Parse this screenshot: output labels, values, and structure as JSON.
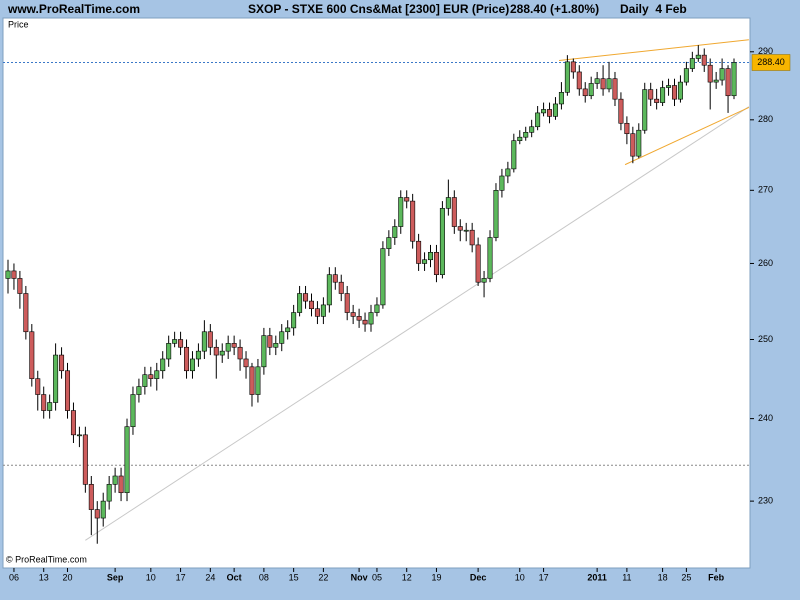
{
  "chart_data": {
    "type": "candlestick",
    "source": "www.ProRealTime.com",
    "title": "SXOP - STXE 600 Cns&Mat [2300] EUR (Price)",
    "subtitle": "288.40 (+1.80%)",
    "period": "Daily  4 Feb",
    "ylabel": "Price",
    "copyright": "© ProRealTime.com",
    "log_scale": true,
    "grid": false,
    "up_color": "#5cb85c",
    "down_color": "#cd5c5c",
    "ylim": [
      222.2,
      295.1
    ],
    "yticks": [
      230,
      240,
      250,
      260,
      270,
      280,
      290
    ],
    "categories": [
      null,
      "06",
      null,
      null,
      null,
      null,
      "13",
      null,
      null,
      null,
      "20",
      null,
      null,
      null,
      null,
      null,
      null,
      null,
      "Sep",
      null,
      null,
      null,
      null,
      null,
      "10",
      null,
      null,
      null,
      null,
      "17",
      null,
      null,
      null,
      null,
      "24",
      null,
      null,
      null,
      "Oct",
      null,
      null,
      null,
      null,
      "08",
      null,
      null,
      null,
      null,
      "15",
      null,
      null,
      null,
      null,
      "22",
      null,
      null,
      null,
      null,
      null,
      "Nov",
      null,
      null,
      "05",
      null,
      null,
      null,
      null,
      "12",
      null,
      null,
      null,
      null,
      "19",
      null,
      null,
      null,
      null,
      null,
      null,
      "Dec",
      null,
      null,
      null,
      null,
      null,
      null,
      "10",
      null,
      null,
      null,
      "17",
      null,
      null,
      null,
      null,
      null,
      null,
      null,
      null,
      "2011",
      null,
      null,
      null,
      null,
      "11",
      null,
      null,
      null,
      null,
      null,
      "18",
      null,
      null,
      null,
      "25",
      null,
      null,
      null,
      null,
      "Feb",
      null,
      null,
      null
    ],
    "open": [
      258,
      259,
      258,
      256,
      251,
      245,
      243,
      241,
      242,
      248,
      246,
      241,
      238,
      238,
      232,
      229,
      228,
      230,
      232,
      233,
      231,
      239,
      243,
      244,
      245.5,
      245,
      246,
      247.5,
      249.5,
      250,
      249,
      246,
      247.5,
      248.5,
      251,
      249,
      248,
      248.5,
      249.5,
      249,
      247.5,
      246.5,
      243,
      246.5,
      250.5,
      249,
      249.5,
      251,
      251.5,
      253.5,
      256,
      255,
      254,
      253,
      254.5,
      258.5,
      257.5,
      256,
      253.5,
      253,
      252.5,
      252,
      253.5,
      254.5,
      262,
      263.5,
      265,
      269,
      268.5,
      263,
      260,
      260.5,
      261.5,
      258.5,
      267.5,
      269,
      265,
      264.5,
      264.5,
      262.5,
      257.5,
      258,
      263.5,
      270,
      272,
      273,
      277,
      277.5,
      278.2,
      279,
      281,
      281.5,
      280.5,
      282.3,
      284,
      288.5,
      287,
      284.5,
      283.5,
      285.3,
      286,
      284.5,
      286,
      283,
      279.5,
      278,
      274.8,
      278.5,
      284.4,
      283,
      282.5,
      284.7,
      285,
      283,
      285.5,
      287.5,
      289,
      289.5,
      288,
      285.5,
      285.8,
      287.5,
      283.5
    ],
    "high": [
      260.5,
      260,
      259,
      257,
      252,
      246,
      244,
      243,
      249.5,
      249,
      247,
      242,
      239,
      239,
      233,
      230,
      231,
      233,
      234,
      234,
      240,
      244,
      245,
      246.5,
      246.5,
      247,
      248.5,
      250.5,
      251,
      251,
      250,
      248.5,
      249.5,
      252.5,
      252,
      250,
      249.5,
      250.5,
      250.5,
      250,
      248.5,
      247,
      247.5,
      251.5,
      251.5,
      250.5,
      252,
      252.5,
      254.5,
      257,
      257,
      256,
      255,
      255.5,
      259.5,
      259.5,
      258.5,
      257,
      254.5,
      254,
      253.5,
      254.5,
      255.5,
      263,
      264.5,
      266,
      270,
      270,
      269.5,
      264,
      261.5,
      262.5,
      262.5,
      268.5,
      271.5,
      270,
      266,
      265.5,
      265.5,
      263.5,
      259,
      264.5,
      271,
      273,
      274,
      278,
      278.5,
      279,
      280,
      282,
      282.5,
      282.5,
      283.3,
      285.5,
      289.5,
      289,
      288,
      285.5,
      286.3,
      287,
      288,
      288.5,
      287,
      284,
      280.5,
      279,
      279.5,
      285.4,
      285.4,
      284.5,
      285.7,
      286,
      286,
      286.5,
      288.5,
      290,
      291,
      290.5,
      289,
      287,
      289,
      288,
      289
    ],
    "low": [
      256,
      256.5,
      254,
      250,
      244,
      241,
      240,
      240,
      241,
      245,
      240,
      237,
      236.5,
      231,
      226,
      225,
      227,
      229,
      231,
      230,
      230,
      238,
      242,
      243,
      244,
      243.5,
      245,
      246.5,
      249,
      248,
      245,
      245,
      246.5,
      247.5,
      248,
      245,
      247,
      247.5,
      248,
      246,
      245,
      241.5,
      242,
      245.5,
      248,
      248,
      248.5,
      250,
      250.5,
      253,
      254,
      253,
      252,
      252,
      253.5,
      256.5,
      255,
      252.5,
      252,
      251.5,
      251,
      251,
      253,
      254,
      261,
      262.5,
      264,
      267.5,
      262,
      259,
      259,
      259.5,
      257.5,
      258,
      266.5,
      264,
      263,
      263,
      261.5,
      257,
      255.5,
      257.5,
      263,
      269,
      271,
      272.5,
      276.5,
      277,
      277.5,
      278.5,
      280.5,
      279.5,
      280,
      281.5,
      283.5,
      286,
      283.5,
      282.5,
      283,
      284.5,
      283.5,
      284,
      282,
      278.5,
      276.5,
      273.8,
      274.5,
      278,
      282,
      281.5,
      282,
      283.5,
      282,
      282.5,
      285,
      287,
      288.5,
      287,
      281.5,
      284.5,
      285,
      281,
      283
    ],
    "close": [
      259,
      258,
      256,
      251,
      245,
      243,
      241,
      242,
      248,
      246,
      241,
      238,
      238,
      232,
      229,
      228,
      230,
      232,
      233,
      231,
      239,
      243,
      244,
      245.5,
      245,
      246,
      247.5,
      249.5,
      250,
      249,
      246,
      247.5,
      248.5,
      251,
      249,
      248,
      248.5,
      249.5,
      249,
      247.5,
      246.5,
      243,
      246.5,
      250.5,
      249,
      249.5,
      251,
      251.5,
      253.5,
      256,
      255,
      254,
      253,
      254.5,
      258.5,
      257.5,
      256,
      253.5,
      253,
      252.5,
      252,
      253.5,
      254.5,
      262,
      263.5,
      265,
      269,
      268.5,
      263,
      260,
      260.5,
      261.5,
      258.5,
      267.5,
      269,
      265,
      264.5,
      264.5,
      262.5,
      257.5,
      258,
      263.5,
      270,
      272,
      273,
      277,
      277.5,
      278.2,
      279,
      281,
      281.5,
      280.5,
      282.3,
      284,
      288.5,
      287,
      284.5,
      283.5,
      285.3,
      286,
      284.5,
      286,
      283,
      279.5,
      278,
      274.8,
      278.5,
      284.4,
      283,
      282.5,
      284.7,
      285,
      283,
      285.5,
      287.5,
      289,
      289.5,
      288,
      285.5,
      285.8,
      287.5,
      283.5,
      288.4
    ],
    "reference_lines": [
      {
        "value": 288.4,
        "label": "288.40",
        "color": "#3a78c8",
        "tag_color": "#f7b500"
      },
      {
        "value": 234.3,
        "color": "#888888"
      }
    ],
    "trendlines": [
      {
        "x": [
          13,
          124.5
        ],
        "y": [
          225.4,
          281.9
        ],
        "color": "#c8c8c8"
      },
      {
        "x": [
          92.6,
          124.5
        ],
        "y": [
          288.7,
          291.8
        ],
        "color": "#f0a830"
      },
      {
        "x": [
          103.7,
          124.5
        ],
        "y": [
          273.6,
          281.8
        ],
        "color": "#f0a830"
      }
    ]
  }
}
